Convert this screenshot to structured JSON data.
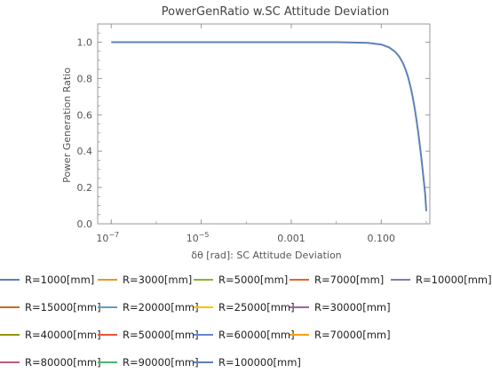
{
  "chart_data": {
    "type": "line",
    "title": "PowerGenRatio w.SC Attitude Deviation",
    "xlabel": "δθ [rad]: SC Attitude Deviation",
    "ylabel": "Power Generation Ratio",
    "xscale": "log",
    "xlim": [
      5e-08,
      1.2
    ],
    "ylim": [
      0,
      1.1
    ],
    "xticks": [
      {
        "value": 1e-07,
        "base": "10",
        "exp": "−7",
        "label": ""
      },
      {
        "value": 1e-05,
        "base": "10",
        "exp": "−5",
        "label": ""
      },
      {
        "value": 0.001,
        "base": "",
        "exp": "",
        "label": "0.001"
      },
      {
        "value": 0.1,
        "base": "",
        "exp": "",
        "label": "0.100"
      }
    ],
    "yticks": [
      {
        "value": 0.0,
        "label": "0.0"
      },
      {
        "value": 0.2,
        "label": "0.2"
      },
      {
        "value": 0.4,
        "label": "0.4"
      },
      {
        "value": 0.6,
        "label": "0.6"
      },
      {
        "value": 0.8,
        "label": "0.8"
      },
      {
        "value": 1.0,
        "label": "1.0"
      }
    ],
    "grid": false,
    "legend_position": "bottom",
    "series": [
      {
        "name": "R=1000[mm]",
        "color": "#5E81B5",
        "x": [
          1e-07,
          0.0001,
          0.01,
          0.05,
          0.1,
          0.15,
          0.2,
          0.25,
          0.3,
          0.35,
          0.4,
          0.45,
          0.5,
          0.55,
          0.6,
          0.65,
          0.7,
          0.75,
          0.8,
          0.85,
          0.9,
          0.95,
          1.0
        ],
        "values": [
          1.0,
          1.0,
          1.0,
          0.996,
          0.987,
          0.971,
          0.949,
          0.921,
          0.887,
          0.847,
          0.802,
          0.751,
          0.697,
          0.639,
          0.579,
          0.518,
          0.456,
          0.394,
          0.333,
          0.273,
          0.215,
          0.158,
          0.07
        ]
      },
      {
        "name": "R=3000[mm]",
        "color": "#E19C24",
        "x": [],
        "values": []
      },
      {
        "name": "R=5000[mm]",
        "color": "#8FB032",
        "x": [],
        "values": []
      },
      {
        "name": "R=7000[mm]",
        "color": "#EB6235",
        "x": [],
        "values": []
      },
      {
        "name": "R=10000[mm]",
        "color": "#8778B3",
        "x": [],
        "values": []
      },
      {
        "name": "R=15000[mm]",
        "color": "#C56E1A",
        "x": [],
        "values": []
      },
      {
        "name": "R=20000[mm]",
        "color": "#5D9EC7",
        "x": [],
        "values": []
      },
      {
        "name": "R=25000[mm]",
        "color": "#FFBF00",
        "x": [],
        "values": []
      },
      {
        "name": "R=30000[mm]",
        "color": "#A5609D",
        "x": [],
        "values": []
      },
      {
        "name": "R=40000[mm]",
        "color": "#929600",
        "x": [],
        "values": []
      },
      {
        "name": "R=50000[mm]",
        "color": "#E95536",
        "x": [],
        "values": []
      },
      {
        "name": "R=60000[mm]",
        "color": "#6685D9",
        "x": [],
        "values": []
      },
      {
        "name": "R=70000[mm]",
        "color": "#F89F13",
        "x": [],
        "values": []
      },
      {
        "name": "R=80000[mm]",
        "color": "#BC5B80",
        "x": [],
        "values": []
      },
      {
        "name": "R=90000[mm]",
        "color": "#47B66D",
        "x": [],
        "values": []
      },
      {
        "name": "R=100000[mm]",
        "color": "#5E81B5",
        "x": [],
        "values": []
      }
    ]
  },
  "colors": {
    "frame": "#999999",
    "text": "#555555",
    "title": "#444444"
  }
}
